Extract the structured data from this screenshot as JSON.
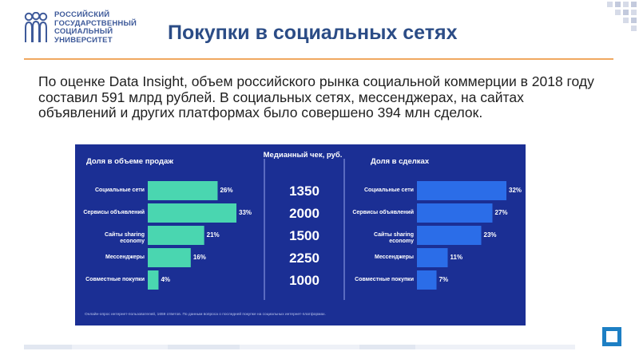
{
  "logo": {
    "lines": [
      "РОССИЙСКИЙ",
      "ГОСУДАРСТВЕННЫЙ",
      "СОЦИАЛЬНЫЙ",
      "УНИВЕРСИТЕТ"
    ]
  },
  "title": "Покупки в социальных сетях",
  "lead": "По оценке Data Insight, объем российского рынка социальной коммерции в 2018 году составил 591 млрд рублей. В социальных сетях, мессенджерах, на сайтах объявлений и других платформах было совершено 394 млн сделок.",
  "colors": {
    "title": "#2b4c86",
    "accent_line": "#f0a860",
    "panel_bg": "#1b2f94",
    "sales_bar": "#4ad6b0",
    "deals_bar": "#2b6de8"
  },
  "chart_data": [
    {
      "type": "bar",
      "orientation": "horizontal",
      "title": "Доля в объеме продаж",
      "categories": [
        "Социальные сети",
        "Сервисы объявлений",
        "Сайты sharing economy",
        "Мессенджеры",
        "Совместные покупки"
      ],
      "values": [
        26,
        33,
        21,
        16,
        4
      ],
      "value_labels": [
        "26%",
        "33%",
        "21%",
        "16%",
        "4%"
      ],
      "xlim": [
        0,
        33
      ]
    },
    {
      "type": "table",
      "title": "Медианный чек, руб.",
      "values": [
        "1350",
        "2000",
        "1500",
        "2250",
        "1000"
      ]
    },
    {
      "type": "bar",
      "orientation": "horizontal",
      "title": "Доля в сделках",
      "categories": [
        "Социальные сети",
        "Сервисы объявлений",
        "Сайты sharing economy",
        "Мессенджеры",
        "Совместные покупки"
      ],
      "values": [
        32,
        27,
        23,
        11,
        7
      ],
      "value_labels": [
        "32%",
        "27%",
        "23%",
        "11%",
        "7%"
      ],
      "xlim": [
        0,
        32
      ]
    }
  ],
  "footnote": "Онлайн-опрос интернет-пользователей, 1659 ответов. По данным вопроса о последней покупке на социальных интернет-платформах."
}
